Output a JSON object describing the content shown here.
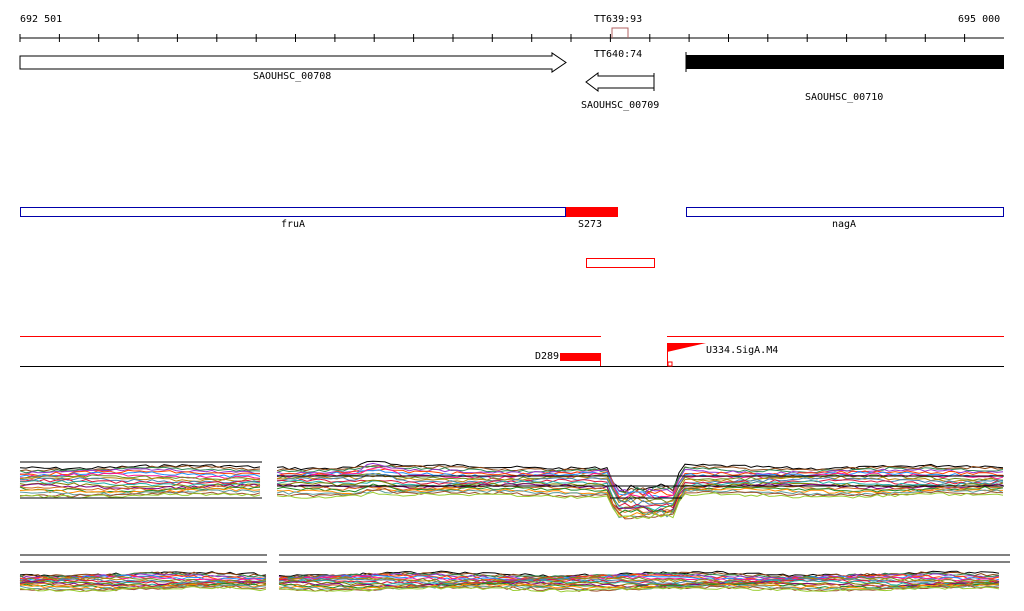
{
  "ruler": {
    "start_label": "692 501",
    "end_label": "695 000"
  },
  "terminators": {
    "top": "TT639:93",
    "lower": "TT640:74"
  },
  "genes": {
    "g1": "SAOUHSC_00708",
    "g2": "SAOUHSC_00709",
    "g3": "SAOUHSC_00710"
  },
  "annotations": {
    "fruA": "fruA",
    "s273": "S273",
    "nagA": "nagA"
  },
  "features": {
    "d289": "D289",
    "u334": "U334.SigA.M4"
  },
  "colors": {
    "red": "#ff0000",
    "blue": "#0000aa",
    "black": "#000000"
  }
}
